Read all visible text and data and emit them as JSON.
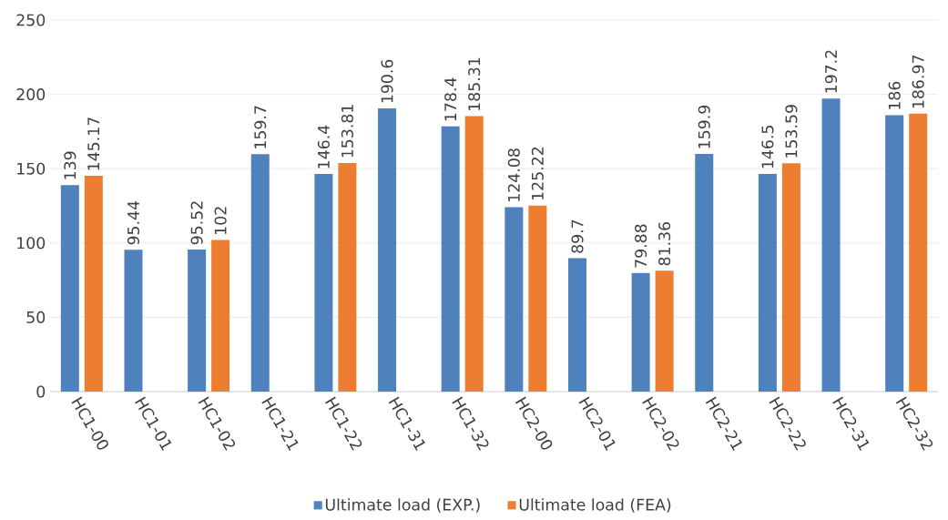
{
  "chart_data": {
    "type": "bar",
    "categories": [
      "HC1-00",
      "HC1-01",
      "HC1-02",
      "HC1-21",
      "HC1-22",
      "HC1-31",
      "HC1-32",
      "HC2-00",
      "HC2-01",
      "HC2-02",
      "HC2-21",
      "HC2-22",
      "HC2-31",
      "HC2-32"
    ],
    "series": [
      {
        "name": "Ultimate load (EXP.)",
        "color": "#4f81bd",
        "values": [
          139,
          95.44,
          95.52,
          159.7,
          146.4,
          190.6,
          178.4,
          124.08,
          89.7,
          79.88,
          159.9,
          146.5,
          197.2,
          186
        ]
      },
      {
        "name": "Ultimate load (FEA)",
        "color": "#ed7d31",
        "values": [
          145.17,
          null,
          102,
          null,
          153.81,
          null,
          185.31,
          125.22,
          null,
          81.36,
          null,
          153.59,
          null,
          186.97
        ]
      }
    ],
    "ylim": [
      0,
      250
    ],
    "yticks": [
      0,
      50,
      100,
      150,
      200,
      250
    ],
    "grid": "y",
    "legend": "bottom",
    "data_labels": true
  }
}
